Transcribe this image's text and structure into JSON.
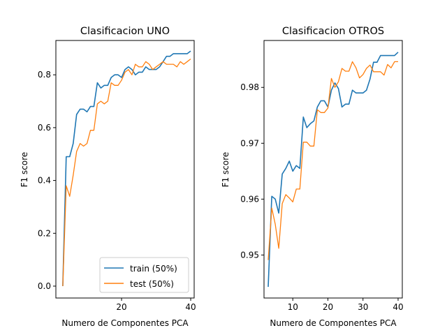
{
  "chart_data": [
    {
      "type": "line",
      "title": "Clasificacion UNO",
      "xlabel": "Numero de Componentes PCA",
      "ylabel": "F1 score",
      "xlim": [
        1,
        41
      ],
      "ylim": [
        -0.045,
        0.93
      ],
      "x_ticks": [
        20,
        40
      ],
      "y_ticks": [
        0.0,
        0.2,
        0.4,
        0.6,
        0.8
      ],
      "y_tick_labels": [
        "0.0",
        "0.2",
        "0.4",
        "0.6",
        "0.8"
      ],
      "x_tick_labels": [
        "20",
        "40"
      ],
      "grid": false,
      "legend": "lower-right",
      "x": [
        3,
        4,
        5,
        6,
        7,
        8,
        9,
        10,
        11,
        12,
        13,
        14,
        15,
        16,
        17,
        18,
        19,
        20,
        21,
        22,
        23,
        24,
        25,
        26,
        27,
        28,
        29,
        30,
        31,
        32,
        33,
        34,
        35,
        36,
        37,
        38,
        39,
        40
      ],
      "series": [
        {
          "name": "train (50%)",
          "color": "#1f77b4",
          "values": [
            0.0,
            0.49,
            0.49,
            0.54,
            0.65,
            0.67,
            0.67,
            0.66,
            0.68,
            0.68,
            0.77,
            0.75,
            0.76,
            0.76,
            0.79,
            0.8,
            0.8,
            0.79,
            0.82,
            0.83,
            0.82,
            0.8,
            0.81,
            0.81,
            0.83,
            0.82,
            0.82,
            0.82,
            0.83,
            0.85,
            0.87,
            0.87,
            0.88,
            0.88,
            0.88,
            0.88,
            0.88,
            0.89
          ]
        },
        {
          "name": "test (50%)",
          "color": "#ff7f0e",
          "values": [
            0.0,
            0.38,
            0.34,
            0.42,
            0.51,
            0.54,
            0.53,
            0.54,
            0.59,
            0.59,
            0.69,
            0.7,
            0.69,
            0.7,
            0.77,
            0.76,
            0.76,
            0.78,
            0.81,
            0.82,
            0.8,
            0.84,
            0.83,
            0.83,
            0.85,
            0.84,
            0.82,
            0.83,
            0.84,
            0.85,
            0.84,
            0.84,
            0.84,
            0.83,
            0.85,
            0.84,
            0.85,
            0.86
          ]
        }
      ]
    },
    {
      "type": "line",
      "title": "Clasificacion OTROS",
      "xlabel": "Numero de Componentes PCA",
      "ylabel": "F1 score",
      "xlim": [
        1.8,
        41.2
      ],
      "ylim": [
        0.9423,
        0.9884
      ],
      "x_ticks": [
        10,
        20,
        30,
        40
      ],
      "x_tick_labels": [
        "10",
        "20",
        "30",
        "40"
      ],
      "y_ticks": [
        0.95,
        0.96,
        0.97,
        0.98
      ],
      "y_tick_labels": [
        "0.95",
        "0.96",
        "0.97",
        "0.98"
      ],
      "grid": false,
      "x": [
        3,
        4,
        5,
        6,
        7,
        8,
        9,
        10,
        11,
        12,
        13,
        14,
        15,
        16,
        17,
        18,
        19,
        20,
        21,
        22,
        23,
        24,
        25,
        26,
        27,
        28,
        29,
        30,
        31,
        32,
        33,
        34,
        35,
        36,
        37,
        38,
        39,
        40
      ],
      "series": [
        {
          "name": "train (50%)",
          "color": "#1f77b4",
          "values": [
            0.9443,
            0.9605,
            0.96,
            0.9575,
            0.9645,
            0.9655,
            0.9668,
            0.965,
            0.966,
            0.9655,
            0.9747,
            0.9728,
            0.9735,
            0.974,
            0.9765,
            0.9776,
            0.9776,
            0.9765,
            0.9795,
            0.9808,
            0.9798,
            0.9765,
            0.977,
            0.977,
            0.9795,
            0.979,
            0.979,
            0.979,
            0.9795,
            0.9815,
            0.9845,
            0.9845,
            0.9857,
            0.9857,
            0.9857,
            0.9857,
            0.9857,
            0.9863
          ]
        },
        {
          "name": "test (50%)",
          "color": "#ff7f0e",
          "values": [
            0.9491,
            0.9584,
            0.9555,
            0.9512,
            0.9592,
            0.9608,
            0.9602,
            0.9595,
            0.9618,
            0.9618,
            0.9702,
            0.9702,
            0.9695,
            0.9695,
            0.976,
            0.9755,
            0.9755,
            0.9763,
            0.9816,
            0.98,
            0.981,
            0.9834,
            0.9829,
            0.9829,
            0.9846,
            0.9835,
            0.9817,
            0.9823,
            0.9834,
            0.984,
            0.9828,
            0.9828,
            0.9828,
            0.9822,
            0.9841,
            0.9835,
            0.9846,
            0.9846
          ]
        }
      ]
    }
  ]
}
